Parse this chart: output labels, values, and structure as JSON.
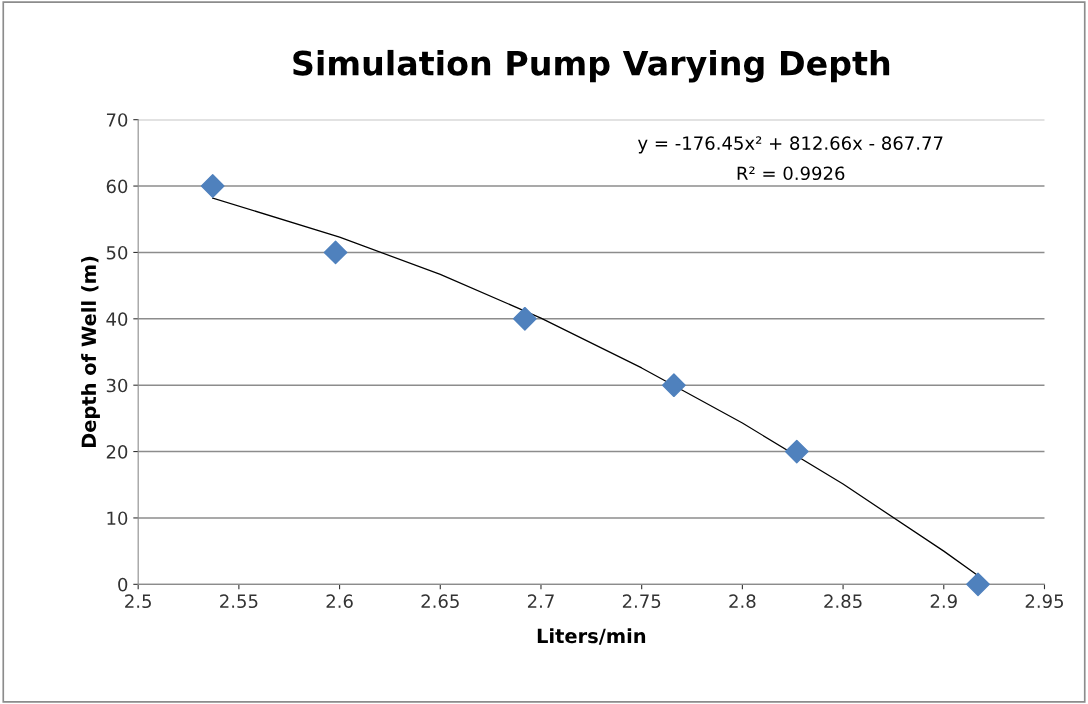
{
  "chart_data": {
    "type": "scatter",
    "title": "Simulation Pump Varying Depth",
    "xlabel": "Liters/min",
    "ylabel": "Depth of Well (m)",
    "annotations": [
      "y = -176.45x² + 812.66x - 867.77",
      "R² = 0.9926"
    ],
    "xlim": [
      2.5,
      2.95
    ],
    "xticks": [
      2.5,
      2.55,
      2.6,
      2.65,
      2.7,
      2.75,
      2.8,
      2.85,
      2.9,
      2.95
    ],
    "ylim": [
      0,
      70
    ],
    "yticks": [
      0,
      10,
      20,
      30,
      40,
      50,
      60,
      70
    ],
    "grid": "y",
    "marker": "diamond",
    "series": [
      {
        "color": "#4f81bd",
        "x": [
          2.537,
          2.598,
          2.692,
          2.766,
          2.827,
          2.917
        ],
        "values": [
          60,
          50,
          40,
          30,
          20,
          0
        ]
      },
      {
        "type": "line",
        "color": "#000000",
        "marker": "none",
        "line_style": "solid",
        "x": [
          2.537,
          2.6,
          2.65,
          2.7,
          2.75,
          2.8,
          2.85,
          2.9,
          2.917
        ],
        "values": [
          58.2,
          52.3,
          46.7,
          40.1,
          32.6,
          24.3,
          15.1,
          5,
          1.3
        ]
      }
    ]
  }
}
